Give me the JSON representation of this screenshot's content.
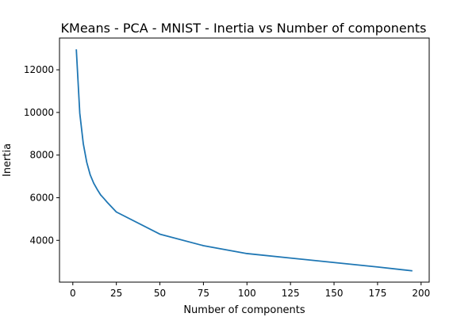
{
  "chart_data": {
    "type": "line",
    "title": "KMeans - PCA - MNIST - Inertia vs Number of components",
    "xlabel": "Number of components",
    "ylabel": "Inertia",
    "xlim": [
      -7.65,
      204.65
    ],
    "ylim": [
      2040,
      13490
    ],
    "xticks": [
      0,
      25,
      50,
      75,
      100,
      125,
      150,
      175,
      200
    ],
    "yticks": [
      4000,
      6000,
      8000,
      10000,
      12000
    ],
    "grid": false,
    "series": [
      {
        "color": "#1f77b4",
        "x": [
          2,
          4,
          6,
          8,
          10,
          12,
          14,
          16,
          18,
          20,
          25,
          50,
          75,
          100,
          125,
          150,
          175,
          195
        ],
        "y": [
          12960,
          9960,
          8540,
          7660,
          7070,
          6680,
          6390,
          6130,
          5950,
          5760,
          5330,
          4290,
          3750,
          3380,
          3170,
          2960,
          2750,
          2570
        ]
      }
    ]
  }
}
